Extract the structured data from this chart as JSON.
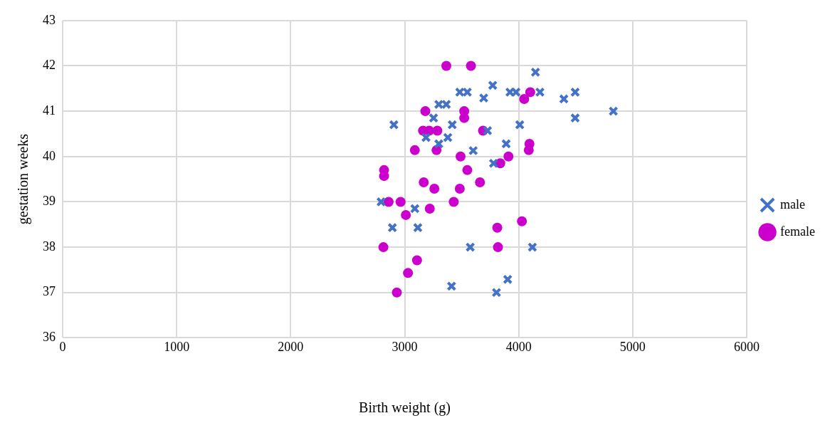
{
  "chart_data": {
    "type": "scatter",
    "xlabel": "Birth weight (g)",
    "ylabel": "gestation weeks",
    "xlim": [
      0,
      6000
    ],
    "xticks": [
      0,
      1000,
      2000,
      3000,
      4000,
      5000,
      6000
    ],
    "ylim": [
      36,
      43
    ],
    "yticks": [
      36,
      37,
      38,
      39,
      40,
      41,
      42,
      43
    ],
    "grid": true,
    "legend": "right",
    "series": [
      {
        "name": "male",
        "color": "#4472c4",
        "marker": "cross",
        "x": [
          2793,
          2905,
          2892,
          3089,
          3115,
          3253,
          3187,
          3299,
          3378,
          3417,
          3299,
          3365,
          3483,
          3549,
          3693,
          3772,
          3726,
          4009,
          3890,
          3601,
          3779,
          3923,
          3976,
          4186,
          4147,
          4396,
          4495,
          4495,
          4830,
          3575,
          4120,
          3411,
          3903,
          3805
        ],
        "values": [
          39.0,
          40.7,
          38.43,
          38.85,
          38.43,
          40.85,
          40.42,
          40.28,
          40.42,
          40.7,
          41.15,
          41.15,
          41.42,
          41.42,
          41.29,
          41.57,
          40.57,
          40.7,
          40.28,
          40.13,
          39.85,
          41.42,
          41.42,
          41.42,
          41.86,
          41.27,
          41.42,
          40.85,
          41.0,
          38.0,
          38.0,
          37.14,
          37.29,
          37.0
        ]
      },
      {
        "name": "female",
        "color": "#cc00cc",
        "marker": "circle",
        "x": [
          3365,
          3581,
          4101,
          4048,
          3181,
          3522,
          3522,
          3161,
          3214,
          3286,
          3687,
          3089,
          3279,
          3490,
          3910,
          3838,
          4094,
          4088,
          2819,
          2819,
          3549,
          3167,
          3660,
          3260,
          3483,
          2859,
          2964,
          3430,
          3220,
          3010,
          3812,
          4028,
          2813,
          3818,
          3108,
          3029,
          2931
        ],
        "values": [
          42.0,
          42.0,
          41.42,
          41.27,
          41.0,
          41.0,
          40.85,
          40.57,
          40.57,
          40.57,
          40.57,
          40.14,
          40.14,
          40.0,
          40.0,
          39.85,
          40.28,
          40.14,
          39.7,
          39.57,
          39.7,
          39.43,
          39.43,
          39.29,
          39.29,
          39.0,
          39.0,
          39.0,
          38.85,
          38.71,
          38.43,
          38.57,
          38.0,
          38.0,
          37.71,
          37.43,
          37.0
        ]
      }
    ]
  }
}
